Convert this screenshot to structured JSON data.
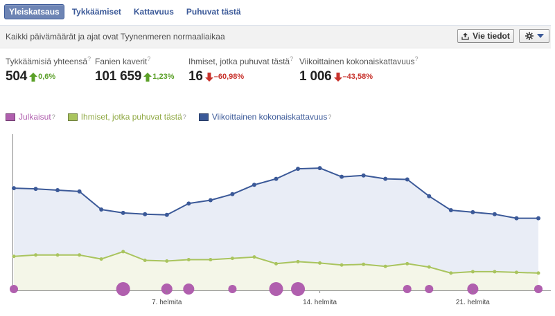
{
  "tabs": [
    {
      "label": "Yleiskatsaus",
      "active": true
    },
    {
      "label": "Tykkäämiset",
      "active": false
    },
    {
      "label": "Kattavuus",
      "active": false
    },
    {
      "label": "Puhuvat tästä",
      "active": false
    }
  ],
  "subbar": {
    "timezone_note": "Kaikki päivämäärät ja ajat ovat Tyynenmeren normaaliaikaa",
    "export_label": "Vie tiedot"
  },
  "stats": [
    {
      "label": "Tykkäämisiä yhteensä",
      "help": "?",
      "value": "504",
      "direction": "up",
      "delta": "0,6%"
    },
    {
      "label": "Fanien kaverit",
      "help": "?",
      "value": "101 659",
      "direction": "up",
      "delta": "1,23%"
    },
    {
      "label": "Ihmiset, jotka puhuvat tästä",
      "help": "?",
      "value": "16",
      "direction": "down",
      "delta": "–60,98%"
    },
    {
      "label": "Viikoittainen kokonaiskattavuus",
      "help": "?",
      "value": "1 006",
      "direction": "down",
      "delta": "–43,58%"
    }
  ],
  "legend": [
    {
      "label": "Julkaisut",
      "help": "?",
      "color": "#b05fae"
    },
    {
      "label": "Ihmiset, jotka puhuvat tästä",
      "help": "?",
      "color": "#a9c45e"
    },
    {
      "label": "Viikoittainen kokonaiskattavuus",
      "help": "?",
      "color": "#3b5998"
    }
  ],
  "colors": {
    "accent": "#3b5998",
    "tab_active_bg": "#6d84b4",
    "up": "#5ba028",
    "down": "#c8322c",
    "reach_fill": "#e9edf6",
    "talking_fill": "#f4f6e8",
    "posts": "#b05fae"
  },
  "chart_data": {
    "type": "line",
    "x_tick_labels": [
      {
        "label": "7. helmita",
        "day": 7
      },
      {
        "label": "14. helmita",
        "day": 14
      },
      {
        "label": "21. helmita",
        "day": 21
      }
    ],
    "days": [
      0,
      1,
      2,
      3,
      4,
      5,
      6,
      7,
      8,
      9,
      10,
      11,
      12,
      13,
      14,
      15,
      16,
      17,
      18,
      19,
      20,
      21,
      22,
      23,
      24
    ],
    "ylim": [
      0,
      240
    ],
    "series": [
      {
        "key": "reach",
        "values": [
          153,
          152,
          150,
          148,
          121,
          116,
          114,
          113,
          130,
          135,
          144,
          158,
          167,
          182,
          183,
          170,
          172,
          167,
          166,
          141,
          120,
          117,
          114,
          108,
          108
        ]
      },
      {
        "key": "talking",
        "values": [
          51,
          53,
          53,
          53,
          47,
          58,
          45,
          44,
          46,
          46,
          48,
          50,
          40,
          43,
          41,
          38,
          39,
          36,
          40,
          35,
          26,
          28,
          28,
          27,
          26
        ]
      },
      {
        "key": "posts",
        "values": [
          1,
          0,
          0,
          0,
          0,
          3,
          0,
          2,
          2,
          0,
          1,
          0,
          3,
          3,
          0,
          0,
          0,
          0,
          1,
          1,
          0,
          2,
          0,
          0,
          1
        ]
      }
    ]
  }
}
